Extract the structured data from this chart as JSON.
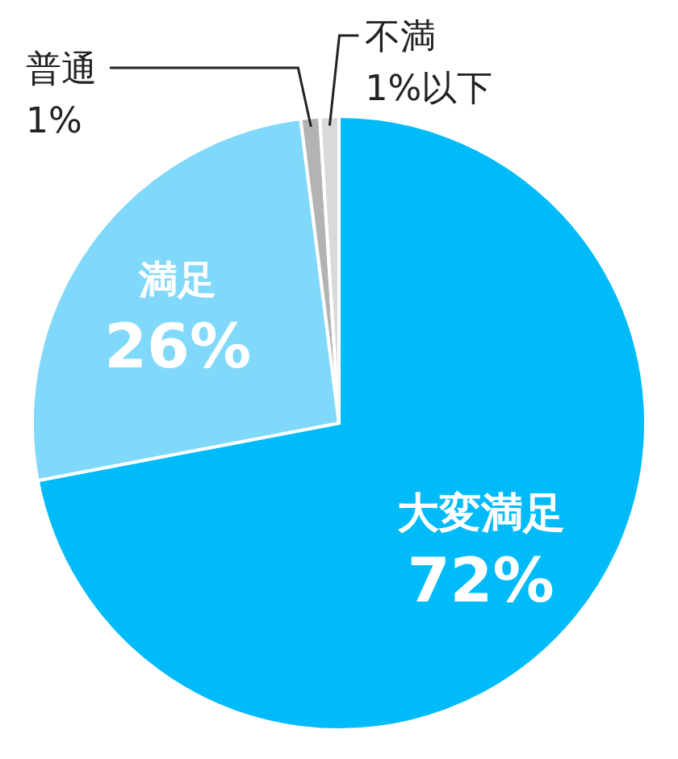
{
  "chart_data": {
    "type": "pie",
    "categories": [
      "大変満足",
      "満足",
      "普通",
      "不満"
    ],
    "values": [
      72,
      26,
      1,
      1
    ],
    "value_labels": [
      "72%",
      "26%",
      "1%",
      "1%以下"
    ],
    "colors": [
      "#00bbf9",
      "#80d8fb",
      "#b3b3b3",
      "#d9d9d9"
    ]
  }
}
